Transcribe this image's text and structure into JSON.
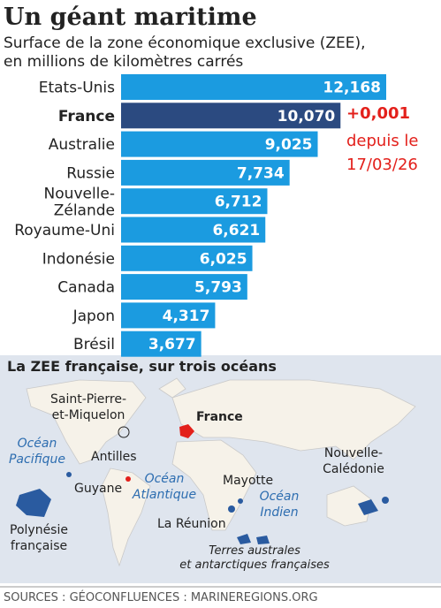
{
  "chart_data": {
    "type": "bar",
    "title": "Un géant maritime",
    "subtitle": [
      "Surface de la zone économique exclusive (ZEE),",
      "en millions de kilomètres carrés"
    ],
    "categories": [
      "Etats-Unis",
      "France",
      "Australie",
      "Russie",
      "Nouvelle-Zélande",
      "Royaume-Uni",
      "Indonésie",
      "Canada",
      "Japon",
      "Brésil"
    ],
    "values": [
      12.168,
      10.07,
      9.025,
      7.734,
      6.712,
      6.621,
      6.025,
      5.793,
      4.317,
      3.677
    ],
    "value_labels": [
      "12,168",
      "10,070",
      "9,025",
      "7,734",
      "6,712",
      "6,621",
      "6,025",
      "5,793",
      "4,317",
      "3,677"
    ],
    "color": "#1b9be0",
    "highlight": {
      "category": "France",
      "color": "#2b4a80"
    },
    "annotation": {
      "text": "+0,001",
      "lines": [
        "depuis le",
        "17/03/26"
      ],
      "color": "#e3201b"
    }
  },
  "map": {
    "title": "La ZEE française, sur trois océans",
    "labels": {
      "spm": [
        "Saint-Pierre-",
        "et-Miquelon"
      ],
      "france": "France",
      "pacifique": [
        "Océan",
        "Pacifique"
      ],
      "antilles": "Antilles",
      "guyane": "Guyane",
      "atlantique": [
        "Océan",
        "Atlantique"
      ],
      "mayotte": "Mayotte",
      "indien": [
        "Océan",
        "Indien"
      ],
      "caledonie": [
        "Nouvelle-",
        "Calédonie"
      ],
      "polynesie": [
        "Polynésie",
        "française"
      ],
      "reunion": "La Réunion",
      "taaf": [
        "Terres australes",
        "et antarctiques françaises"
      ]
    }
  },
  "sources": "SOURCES : GÉOCONFLUENCES : MARINEREGIONS.ORG"
}
